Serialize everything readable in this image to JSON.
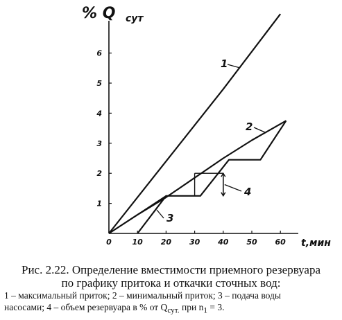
{
  "chart_data": {
    "type": "line",
    "ylabel": "% Q",
    "ylabel_sub": "сут",
    "xlabel": "t,мин",
    "xlim": [
      0,
      60
    ],
    "ylim": [
      0,
      7
    ],
    "x_ticks": [
      "0",
      "10",
      "20",
      "30",
      "40",
      "50",
      "60"
    ],
    "y_ticks": [
      "1",
      "2",
      "3",
      "4",
      "5",
      "6"
    ],
    "grid": false,
    "series": [
      {
        "name": "1",
        "x": [
          0,
          20,
          40,
          60
        ],
        "y": [
          0,
          2.4,
          4.8,
          7.3
        ]
      },
      {
        "name": "2",
        "x": [
          0,
          10,
          20,
          30,
          40,
          50,
          62
        ],
        "y": [
          0,
          0.62,
          1.2,
          1.85,
          2.5,
          3.1,
          3.75
        ]
      },
      {
        "name": "3",
        "x": [
          10,
          20,
          32,
          42,
          53,
          62
        ],
        "y": [
          0,
          1.25,
          1.25,
          2.45,
          2.45,
          3.75
        ]
      }
    ],
    "annotations": [
      {
        "label": "4",
        "x": 40,
        "y": [
          1.25,
          2.0
        ]
      }
    ]
  },
  "caption": {
    "line1": "Рис. 2.22. Определение вместимости приемного резервуара",
    "line2": "по графику притока и откачки сточных вод:",
    "legend_1_prefix": "1 – максимальный приток; 2 – минимальный приток; 3 – подача воды",
    "legend_2_prefix": "насосами; 4 – объем резервуара в % от Q",
    "legend_2_sub": "сут.",
    "legend_2_mid": " при n",
    "legend_2_sub2": "1",
    "legend_2_suffix": " = 3."
  }
}
